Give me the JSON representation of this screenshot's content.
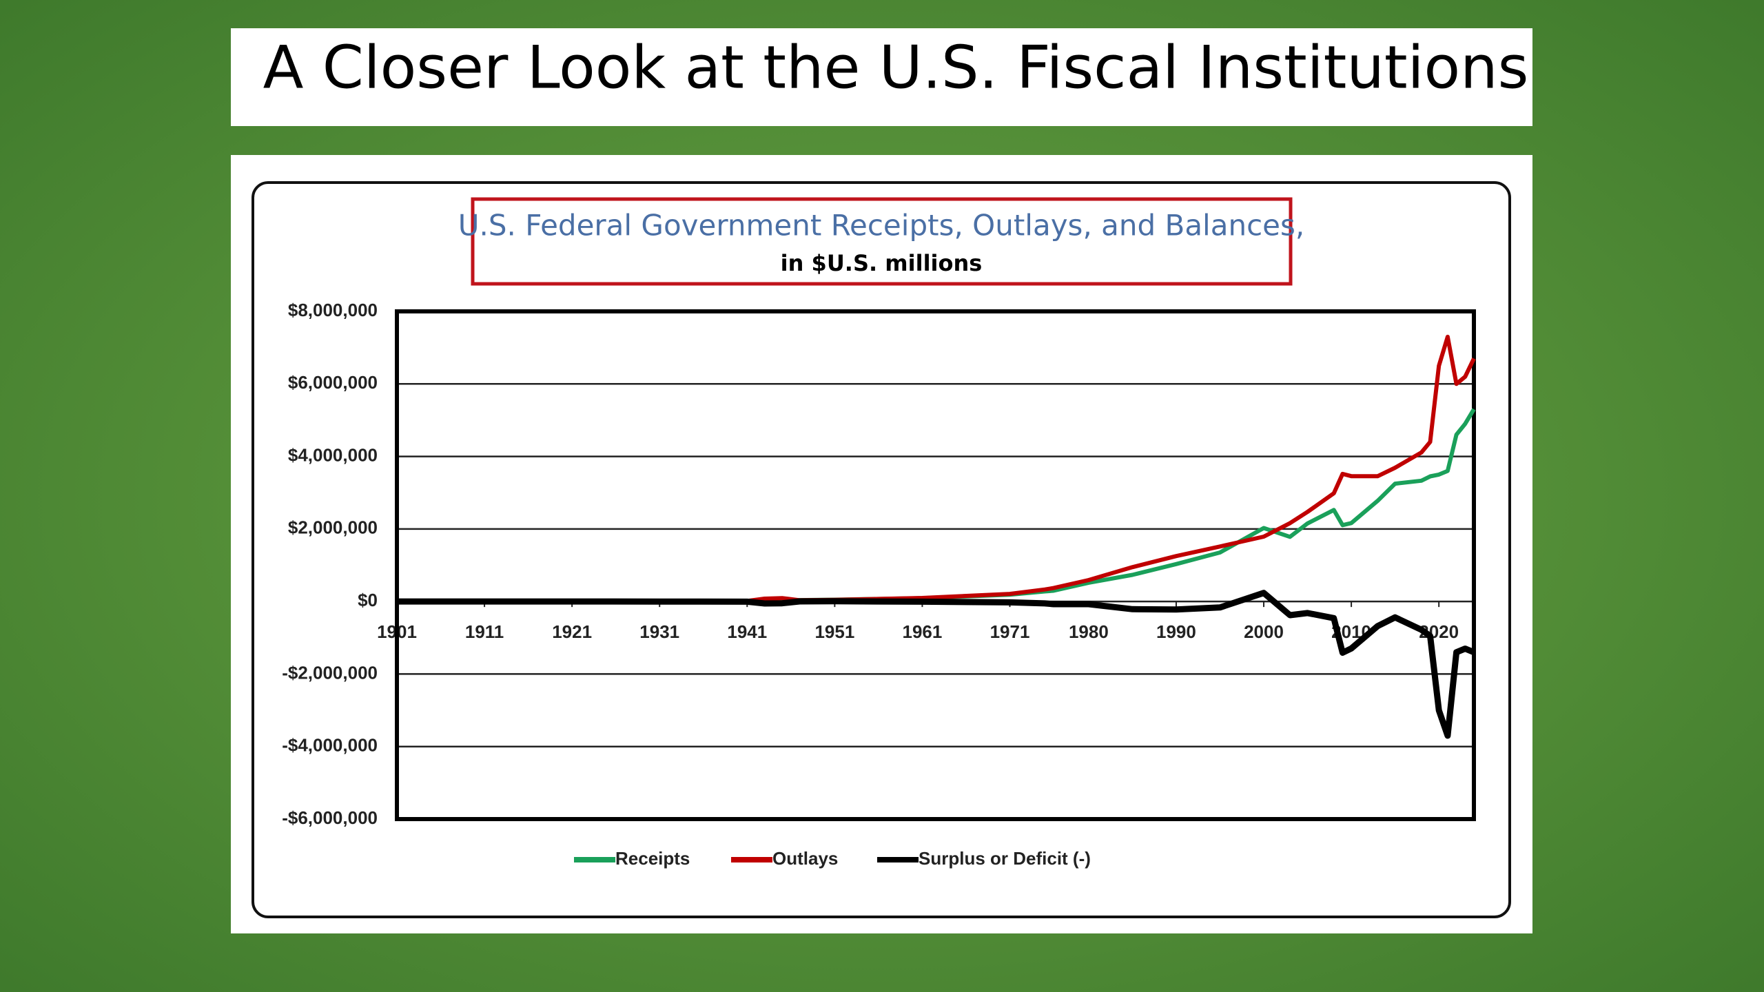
{
  "slide_title": "A Closer Look at the U.S. Fiscal Institutions",
  "chart_data": {
    "type": "line",
    "title": "U.S. Federal Government Receipts, Outlays, and Balances,",
    "subtitle": "in $U.S. millions",
    "x": [
      1901,
      1911,
      1921,
      1931,
      1941,
      1943,
      1945,
      1947,
      1951,
      1961,
      1971,
      1975,
      1976,
      1980,
      1985,
      1990,
      1995,
      2000,
      2003,
      2005,
      2008,
      2009,
      2010,
      2013,
      2015,
      2018,
      2019,
      2020,
      2021,
      2022,
      2023,
      2024
    ],
    "series": [
      {
        "name": "Receipts",
        "color": "#1aa05a",
        "values": [
          0,
          0,
          5000,
          3000,
          9000,
          24000,
          45000,
          38000,
          51000,
          94000,
          187000,
          279000,
          298000,
          517000,
          734000,
          1032000,
          1352000,
          2025000,
          1782000,
          2154000,
          2524000,
          2105000,
          2163000,
          2775000,
          3250000,
          3330000,
          3450000,
          3500000,
          3600000,
          4600000,
          4900000,
          5300000
        ]
      },
      {
        "name": "Outlays",
        "color": "#c00000",
        "values": [
          0,
          0,
          5000,
          4000,
          14000,
          79000,
          93000,
          35000,
          45000,
          98000,
          210000,
          332000,
          372000,
          591000,
          946000,
          1253000,
          1516000,
          1789000,
          2160000,
          2472000,
          2983000,
          3518000,
          3457000,
          3455000,
          3688000,
          4109000,
          4400000,
          6500000,
          7300000,
          6000000,
          6200000,
          6700000
        ]
      },
      {
        "name": "Surplus or Deficit (-)",
        "color": "#000000",
        "values": [
          0,
          0,
          0,
          -1000,
          -5000,
          -55000,
          -48000,
          3000,
          6000,
          -4000,
          -23000,
          -53000,
          -74000,
          -74000,
          -212000,
          -221000,
          -164000,
          236000,
          -378000,
          -318000,
          -459000,
          -1413000,
          -1294000,
          -680000,
          -438000,
          -779000,
          -950000,
          -3000000,
          -3700000,
          -1400000,
          -1300000,
          -1400000
        ]
      }
    ],
    "xlim": [
      1901,
      2024
    ],
    "xticks": [
      1901,
      1911,
      1921,
      1931,
      1941,
      1951,
      1961,
      1971,
      1980,
      1990,
      2000,
      2010,
      2020
    ],
    "ylim": [
      -6000000,
      8000000
    ],
    "yticks": [
      {
        "value": -6000000,
        "label": "-$6,000,000"
      },
      {
        "value": -4000000,
        "label": "-$4,000,000"
      },
      {
        "value": -2000000,
        "label": "-$2,000,000"
      },
      {
        "value": 0,
        "label": "$0"
      },
      {
        "value": 2000000,
        "label": "$2,000,000"
      },
      {
        "value": 4000000,
        "label": "$4,000,000"
      },
      {
        "value": 6000000,
        "label": "$6,000,000"
      },
      {
        "value": 8000000,
        "label": "$8,000,000"
      }
    ],
    "grid": true,
    "legend": "bottom"
  }
}
